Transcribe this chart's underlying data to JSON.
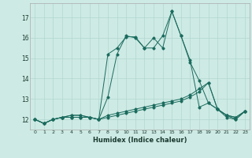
{
  "xlabel": "Humidex (Indice chaleur)",
  "bg_color": "#ceeae4",
  "line_color": "#1a6b5e",
  "x": [
    0,
    1,
    2,
    3,
    4,
    5,
    6,
    7,
    8,
    9,
    10,
    11,
    12,
    13,
    14,
    15,
    16,
    17,
    18,
    19,
    20,
    21,
    22,
    23
  ],
  "series": [
    [
      12.0,
      11.8,
      12.0,
      12.1,
      12.1,
      12.1,
      12.1,
      12.0,
      12.1,
      12.2,
      12.3,
      12.4,
      12.5,
      12.6,
      12.7,
      12.8,
      12.9,
      13.1,
      13.35,
      13.8,
      12.5,
      12.2,
      12.1,
      12.4
    ],
    [
      12.0,
      11.8,
      12.0,
      12.1,
      12.1,
      12.1,
      12.1,
      12.0,
      12.2,
      12.3,
      12.4,
      12.5,
      12.6,
      12.7,
      12.8,
      12.9,
      13.0,
      13.2,
      13.5,
      13.8,
      12.5,
      12.2,
      12.1,
      12.4
    ],
    [
      12.0,
      11.8,
      12.0,
      12.1,
      12.2,
      12.2,
      12.1,
      12.0,
      13.1,
      15.2,
      16.1,
      16.0,
      15.5,
      16.0,
      15.5,
      17.3,
      16.1,
      14.9,
      12.6,
      12.8,
      12.5,
      12.2,
      12.0,
      12.4
    ],
    [
      12.0,
      11.8,
      12.0,
      12.1,
      12.2,
      12.2,
      12.1,
      12.0,
      15.2,
      15.5,
      16.05,
      16.05,
      15.5,
      15.5,
      16.1,
      17.3,
      16.1,
      14.8,
      13.9,
      12.8,
      12.5,
      12.1,
      12.0,
      12.4
    ]
  ],
  "ylim": [
    11.5,
    17.7
  ],
  "yticks": [
    12,
    13,
    14,
    15,
    16,
    17
  ],
  "grid_color": "#b0d8d0"
}
